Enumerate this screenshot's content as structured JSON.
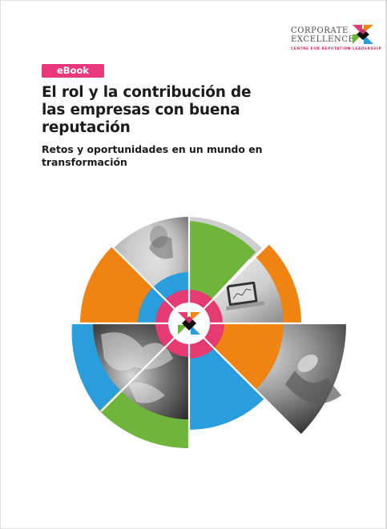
{
  "brand": {
    "line1": "CORPORATE",
    "line2": "EXCELLENCE",
    "tagline": "CENTRE FOR REPUTATION LEADERSHIP",
    "accent_color": "#e5245f"
  },
  "badge": {
    "label": "eBook",
    "color": "#e8387a"
  },
  "title": "El rol y la contribución de las empresas con buena reputación",
  "subtitle": "Retos y oportunidades en un mundo en transformación",
  "palette": {
    "orange": "#ef8412",
    "green": "#6fb53c",
    "blue": "#2a9ddc",
    "pink": "#e63a73",
    "grey": "#cfcfcf"
  },
  "photos": [
    {
      "icon": "woman-portrait-photo"
    },
    {
      "icon": "laptop-analytics-photo"
    },
    {
      "icon": "earth-clouds-photo"
    },
    {
      "icon": "hand-seedling-photo"
    }
  ]
}
